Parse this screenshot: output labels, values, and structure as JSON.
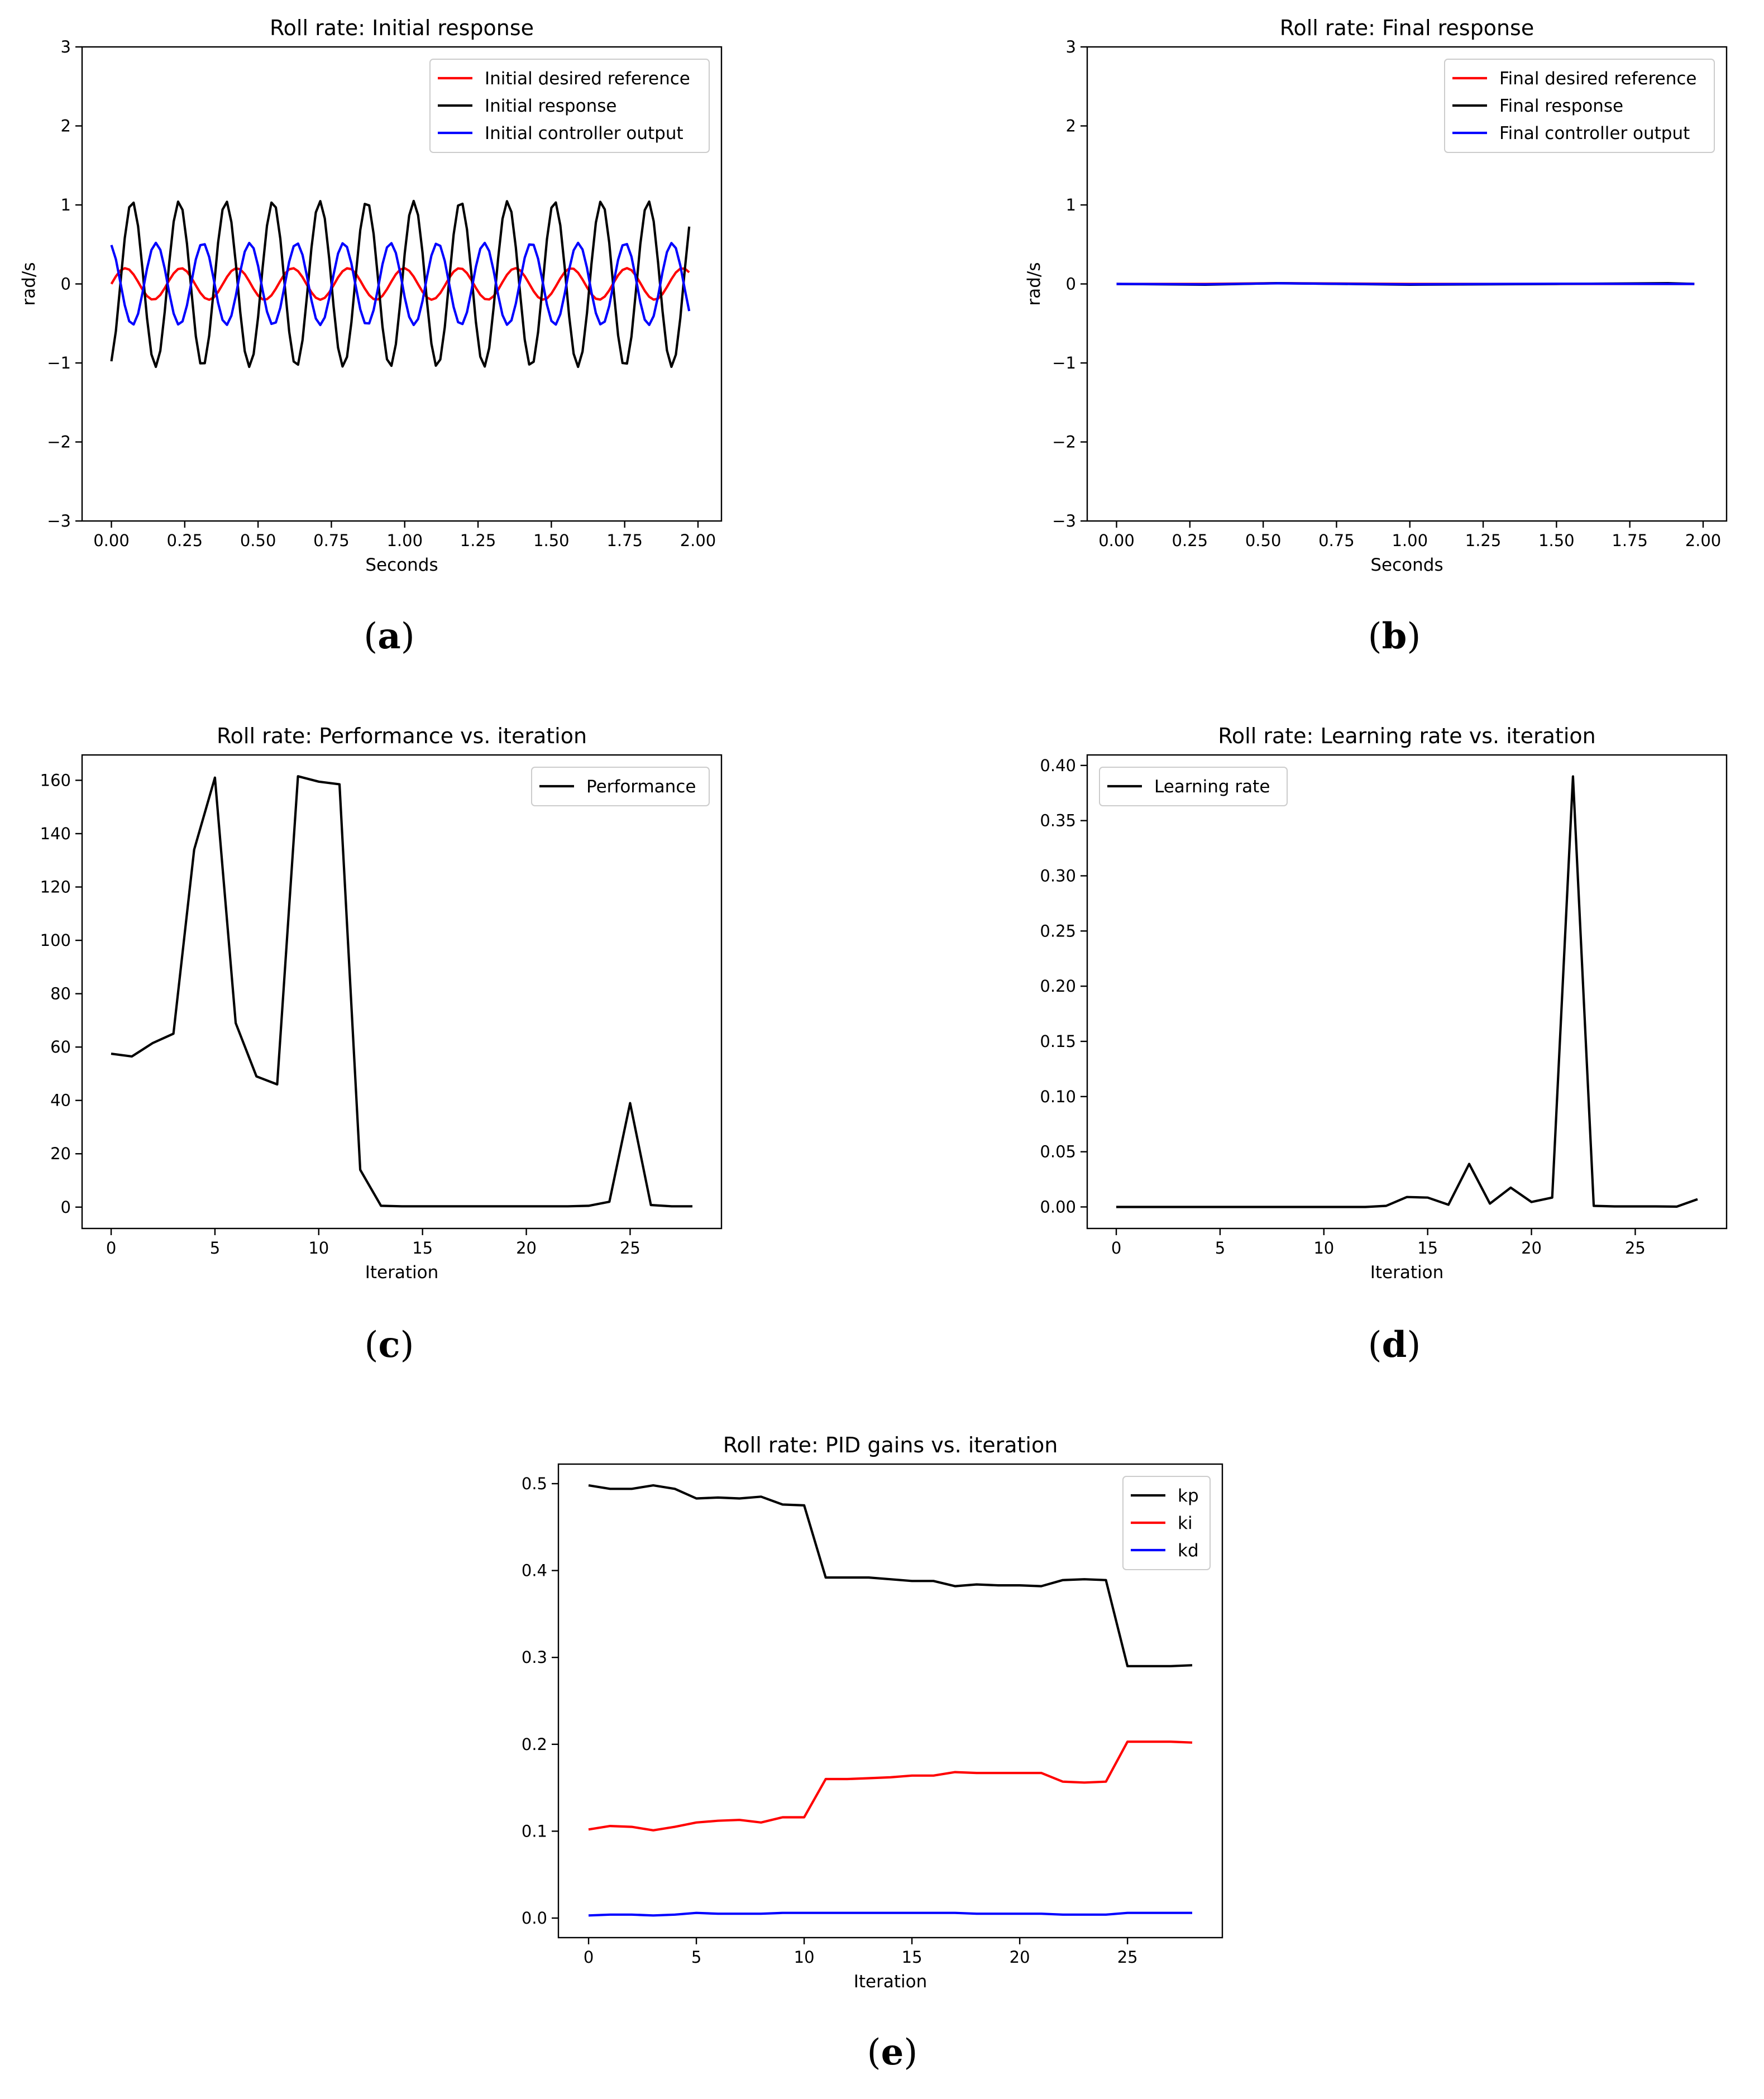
{
  "figure_labels": [
    "a",
    "b",
    "c",
    "d",
    "e"
  ],
  "chart_data": [
    {
      "id": "a",
      "type": "line",
      "title": "Roll rate: Initial response",
      "xlabel": "Seconds",
      "ylabel": "rad/s",
      "xlim": [
        -0.1,
        2.08
      ],
      "ylim": [
        -3,
        3
      ],
      "xticks": [
        "0.00",
        "0.25",
        "0.50",
        "0.75",
        "1.00",
        "1.25",
        "1.50",
        "1.75",
        "2.00"
      ],
      "xtick_values": [
        0,
        0.25,
        0.5,
        0.75,
        1.0,
        1.25,
        1.5,
        1.75,
        2.0
      ],
      "yticks": [
        "−3",
        "−2",
        "−1",
        "0",
        "1",
        "2",
        "3"
      ],
      "ytick_values": [
        -3,
        -2,
        -1,
        0,
        1,
        2,
        3
      ],
      "legend_position": "upper right",
      "series": [
        {
          "name": "Initial desired reference",
          "color": "#ff0000",
          "x_start": 0,
          "x_end": 1.97,
          "periodic": {
            "amplitude": 0.2,
            "period": 0.19,
            "phase": 0.0,
            "offset": 0.0
          }
        },
        {
          "name": "Initial response",
          "color": "#000000",
          "x_start": 0,
          "x_end": 1.97,
          "periodic": {
            "amplitude": 1.05,
            "period": 0.16,
            "phase": -1.2,
            "offset": 0.0
          }
        },
        {
          "name": "Initial controller output",
          "color": "#0000ff",
          "x_start": 0,
          "x_end": 1.97,
          "periodic": {
            "amplitude": 0.52,
            "period": 0.16,
            "phase": 1.9,
            "offset": 0.0
          }
        }
      ]
    },
    {
      "id": "b",
      "type": "line",
      "title": "Roll rate: Final response",
      "xlabel": "Seconds",
      "ylabel": "rad/s",
      "xlim": [
        -0.1,
        2.08
      ],
      "ylim": [
        -3,
        3
      ],
      "xticks": [
        "0.00",
        "0.25",
        "0.50",
        "0.75",
        "1.00",
        "1.25",
        "1.50",
        "1.75",
        "2.00"
      ],
      "xtick_values": [
        0,
        0.25,
        0.5,
        0.75,
        1.0,
        1.25,
        1.5,
        1.75,
        2.0
      ],
      "yticks": [
        "−3",
        "−2",
        "−1",
        "0",
        "1",
        "2",
        "3"
      ],
      "ytick_values": [
        -3,
        -2,
        -1,
        0,
        1,
        2,
        3
      ],
      "legend_position": "upper right",
      "series": [
        {
          "name": "Final desired reference",
          "color": "#ff0000",
          "x": [
            0,
            0.3,
            0.55,
            1.0,
            1.5,
            1.97
          ],
          "y": [
            0.0,
            0.0,
            0.01,
            0.0,
            0.0,
            0.0
          ]
        },
        {
          "name": "Final response",
          "color": "#000000",
          "x": [
            0,
            0.3,
            0.55,
            1.0,
            1.5,
            1.88,
            1.97
          ],
          "y": [
            0.0,
            -0.01,
            0.01,
            -0.01,
            0.0,
            0.01,
            0.0
          ]
        },
        {
          "name": "Final controller output",
          "color": "#0000ff",
          "x": [
            0,
            0.3,
            0.55,
            1.0,
            1.5,
            1.97
          ],
          "y": [
            0.0,
            -0.005,
            0.008,
            -0.005,
            0.002,
            0.0
          ]
        }
      ]
    },
    {
      "id": "c",
      "type": "line",
      "title": "Roll rate: Performance vs. iteration",
      "xlabel": "Iteration",
      "ylabel": "",
      "xlim": [
        -1.4,
        29.4
      ],
      "ylim": [
        -8,
        169.5
      ],
      "xticks": [
        "0",
        "5",
        "10",
        "15",
        "20",
        "25"
      ],
      "xtick_values": [
        0,
        5,
        10,
        15,
        20,
        25
      ],
      "yticks": [
        "0",
        "20",
        "40",
        "60",
        "80",
        "100",
        "120",
        "140",
        "160"
      ],
      "ytick_values": [
        0,
        20,
        40,
        60,
        80,
        100,
        120,
        140,
        160
      ],
      "legend_position": "upper right",
      "series": [
        {
          "name": "Performance",
          "color": "#000000",
          "x": [
            0,
            1,
            2,
            3,
            4,
            5,
            6,
            7,
            8,
            9,
            10,
            11,
            12,
            13,
            14,
            15,
            16,
            17,
            18,
            19,
            20,
            21,
            22,
            23,
            24,
            25,
            26,
            27,
            28
          ],
          "y": [
            57.5,
            56.5,
            61.5,
            65.0,
            134.0,
            161.0,
            69.0,
            49.0,
            46.0,
            161.5,
            159.5,
            158.5,
            14.0,
            0.5,
            0.3,
            0.3,
            0.3,
            0.3,
            0.3,
            0.3,
            0.3,
            0.3,
            0.3,
            0.5,
            2.0,
            39.0,
            0.8,
            0.3,
            0.3
          ]
        }
      ]
    },
    {
      "id": "d",
      "type": "line",
      "title": "Roll rate: Learning rate vs. iteration",
      "xlabel": "Iteration",
      "ylabel": "",
      "xlim": [
        -1.4,
        29.4
      ],
      "ylim": [
        -0.0195,
        0.4095
      ],
      "xticks": [
        "0",
        "5",
        "10",
        "15",
        "20",
        "25"
      ],
      "xtick_values": [
        0,
        5,
        10,
        15,
        20,
        25
      ],
      "yticks": [
        "0.00",
        "0.05",
        "0.10",
        "0.15",
        "0.20",
        "0.25",
        "0.30",
        "0.35",
        "0.40"
      ],
      "ytick_values": [
        0,
        0.05,
        0.1,
        0.15,
        0.2,
        0.25,
        0.3,
        0.35,
        0.4
      ],
      "legend_position": "upper left",
      "series": [
        {
          "name": "Learning rate",
          "color": "#000000",
          "x": [
            0,
            1,
            2,
            3,
            4,
            5,
            6,
            7,
            8,
            9,
            10,
            11,
            12,
            13,
            14,
            15,
            16,
            17,
            18,
            19,
            20,
            21,
            22,
            23,
            24,
            25,
            26,
            27,
            28
          ],
          "y": [
            0,
            0,
            0,
            0,
            0,
            0,
            0,
            0,
            0,
            0,
            0,
            0,
            0,
            0.001,
            0.009,
            0.0085,
            0.002,
            0.039,
            0.003,
            0.0175,
            0.0045,
            0.0085,
            0.39,
            0.001,
            0.0005,
            0.0005,
            0.0005,
            0.0003,
            0.007
          ]
        }
      ]
    },
    {
      "id": "e",
      "type": "line",
      "title": "Roll rate: PID gains vs. iteration",
      "xlabel": "Iteration",
      "ylabel": "",
      "xlim": [
        -1.4,
        29.4
      ],
      "ylim": [
        -0.0225,
        0.5225
      ],
      "xticks": [
        "0",
        "5",
        "10",
        "15",
        "20",
        "25"
      ],
      "xtick_values": [
        0,
        5,
        10,
        15,
        20,
        25
      ],
      "yticks": [
        "0.0",
        "0.1",
        "0.2",
        "0.3",
        "0.4",
        "0.5"
      ],
      "ytick_values": [
        0,
        0.1,
        0.2,
        0.3,
        0.4,
        0.5
      ],
      "legend_position": "upper right",
      "series": [
        {
          "name": "kp",
          "color": "#000000",
          "x": [
            0,
            1,
            2,
            3,
            4,
            5,
            6,
            7,
            8,
            9,
            10,
            11,
            12,
            13,
            14,
            15,
            16,
            17,
            18,
            19,
            20,
            21,
            22,
            23,
            24,
            25,
            26,
            27,
            28
          ],
          "y": [
            0.498,
            0.494,
            0.494,
            0.498,
            0.494,
            0.483,
            0.484,
            0.483,
            0.485,
            0.476,
            0.475,
            0.392,
            0.392,
            0.392,
            0.39,
            0.388,
            0.388,
            0.382,
            0.384,
            0.383,
            0.383,
            0.382,
            0.389,
            0.39,
            0.389,
            0.29,
            0.29,
            0.29,
            0.291
          ]
        },
        {
          "name": "ki",
          "color": "#ff0000",
          "x": [
            0,
            1,
            2,
            3,
            4,
            5,
            6,
            7,
            8,
            9,
            10,
            11,
            12,
            13,
            14,
            15,
            16,
            17,
            18,
            19,
            20,
            21,
            22,
            23,
            24,
            25,
            26,
            27,
            28
          ],
          "y": [
            0.102,
            0.106,
            0.105,
            0.101,
            0.105,
            0.11,
            0.112,
            0.113,
            0.11,
            0.116,
            0.116,
            0.16,
            0.16,
            0.161,
            0.162,
            0.164,
            0.164,
            0.168,
            0.167,
            0.167,
            0.167,
            0.167,
            0.157,
            0.156,
            0.157,
            0.203,
            0.203,
            0.203,
            0.202
          ]
        },
        {
          "name": "kd",
          "color": "#0000ff",
          "x": [
            0,
            1,
            2,
            3,
            4,
            5,
            6,
            7,
            8,
            9,
            10,
            11,
            12,
            13,
            14,
            15,
            16,
            17,
            18,
            19,
            20,
            21,
            22,
            23,
            24,
            25,
            26,
            27,
            28
          ],
          "y": [
            0.003,
            0.004,
            0.004,
            0.003,
            0.004,
            0.006,
            0.005,
            0.005,
            0.005,
            0.006,
            0.006,
            0.006,
            0.006,
            0.006,
            0.006,
            0.006,
            0.006,
            0.006,
            0.005,
            0.005,
            0.005,
            0.005,
            0.004,
            0.004,
            0.004,
            0.006,
            0.006,
            0.006,
            0.006
          ]
        }
      ]
    }
  ]
}
